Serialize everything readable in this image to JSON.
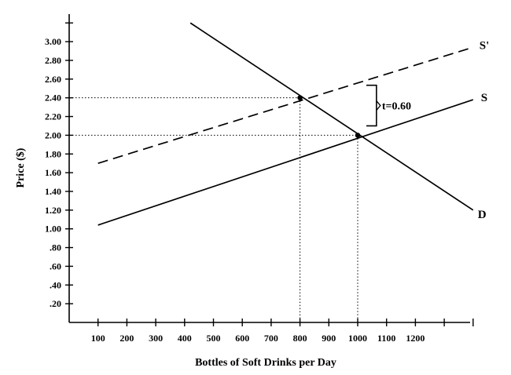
{
  "chart_data": {
    "type": "line",
    "xlabel": "Bottles of Soft Drinks per Day",
    "ylabel": "Price ($)",
    "xlim": [
      0,
      1400
    ],
    "ylim": [
      0,
      3.2
    ],
    "x_ticks": [
      100,
      200,
      300,
      400,
      500,
      600,
      700,
      800,
      900,
      1000,
      1100,
      1200
    ],
    "x_tick_labels": [
      "100",
      "200",
      "300",
      "400",
      "500",
      "600",
      "700",
      "800",
      "900",
      "1000",
      "1100",
      "1200"
    ],
    "y_ticks": [
      0.2,
      0.4,
      0.6,
      0.8,
      1.0,
      1.2,
      1.4,
      1.6,
      1.8,
      2.0,
      2.2,
      2.4,
      2.6,
      2.8,
      3.0
    ],
    "y_tick_labels": [
      ".20",
      ".40",
      ".60",
      ".80",
      "1.00",
      "1.20",
      "1.40",
      "1.60",
      "1.80",
      "2.00",
      "2.20",
      "2.40",
      "2.60",
      "2.80",
      "3.00"
    ],
    "series": [
      {
        "name": "S",
        "style": "solid",
        "x": [
          100,
          1400
        ],
        "y": [
          1.04,
          2.38
        ]
      },
      {
        "name": "S'",
        "style": "dashed",
        "x": [
          100,
          1400
        ],
        "y": [
          1.7,
          2.94
        ]
      },
      {
        "name": "D",
        "style": "solid",
        "x": [
          420,
          1400
        ],
        "y": [
          3.2,
          1.2
        ]
      }
    ],
    "points": [
      {
        "x": 800,
        "y": 2.4
      },
      {
        "x": 1000,
        "y": 2.0
      }
    ],
    "annotation": {
      "text": "t=0.60",
      "y_from": 2.0,
      "y_to": 2.4
    }
  }
}
